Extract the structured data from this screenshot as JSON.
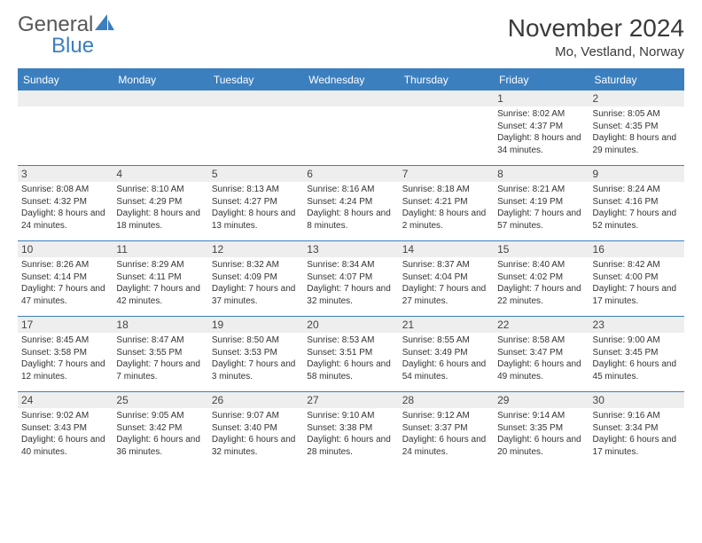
{
  "brand": {
    "part1": "General",
    "part2": "Blue"
  },
  "title": "November 2024",
  "subtitle": "Mo, Vestland, Norway",
  "colors": {
    "accent": "#3b7fbf",
    "header_text": "#ffffff",
    "daynum_bg": "#eeeeee",
    "text": "#333333",
    "background": "#ffffff"
  },
  "day_headers": [
    "Sunday",
    "Monday",
    "Tuesday",
    "Wednesday",
    "Thursday",
    "Friday",
    "Saturday"
  ],
  "weeks": [
    [
      {
        "n": "",
        "sunrise": "",
        "sunset": "",
        "daylight": ""
      },
      {
        "n": "",
        "sunrise": "",
        "sunset": "",
        "daylight": ""
      },
      {
        "n": "",
        "sunrise": "",
        "sunset": "",
        "daylight": ""
      },
      {
        "n": "",
        "sunrise": "",
        "sunset": "",
        "daylight": ""
      },
      {
        "n": "",
        "sunrise": "",
        "sunset": "",
        "daylight": ""
      },
      {
        "n": "1",
        "sunrise": "Sunrise: 8:02 AM",
        "sunset": "Sunset: 4:37 PM",
        "daylight": "Daylight: 8 hours and 34 minutes."
      },
      {
        "n": "2",
        "sunrise": "Sunrise: 8:05 AM",
        "sunset": "Sunset: 4:35 PM",
        "daylight": "Daylight: 8 hours and 29 minutes."
      }
    ],
    [
      {
        "n": "3",
        "sunrise": "Sunrise: 8:08 AM",
        "sunset": "Sunset: 4:32 PM",
        "daylight": "Daylight: 8 hours and 24 minutes."
      },
      {
        "n": "4",
        "sunrise": "Sunrise: 8:10 AM",
        "sunset": "Sunset: 4:29 PM",
        "daylight": "Daylight: 8 hours and 18 minutes."
      },
      {
        "n": "5",
        "sunrise": "Sunrise: 8:13 AM",
        "sunset": "Sunset: 4:27 PM",
        "daylight": "Daylight: 8 hours and 13 minutes."
      },
      {
        "n": "6",
        "sunrise": "Sunrise: 8:16 AM",
        "sunset": "Sunset: 4:24 PM",
        "daylight": "Daylight: 8 hours and 8 minutes."
      },
      {
        "n": "7",
        "sunrise": "Sunrise: 8:18 AM",
        "sunset": "Sunset: 4:21 PM",
        "daylight": "Daylight: 8 hours and 2 minutes."
      },
      {
        "n": "8",
        "sunrise": "Sunrise: 8:21 AM",
        "sunset": "Sunset: 4:19 PM",
        "daylight": "Daylight: 7 hours and 57 minutes."
      },
      {
        "n": "9",
        "sunrise": "Sunrise: 8:24 AM",
        "sunset": "Sunset: 4:16 PM",
        "daylight": "Daylight: 7 hours and 52 minutes."
      }
    ],
    [
      {
        "n": "10",
        "sunrise": "Sunrise: 8:26 AM",
        "sunset": "Sunset: 4:14 PM",
        "daylight": "Daylight: 7 hours and 47 minutes."
      },
      {
        "n": "11",
        "sunrise": "Sunrise: 8:29 AM",
        "sunset": "Sunset: 4:11 PM",
        "daylight": "Daylight: 7 hours and 42 minutes."
      },
      {
        "n": "12",
        "sunrise": "Sunrise: 8:32 AM",
        "sunset": "Sunset: 4:09 PM",
        "daylight": "Daylight: 7 hours and 37 minutes."
      },
      {
        "n": "13",
        "sunrise": "Sunrise: 8:34 AM",
        "sunset": "Sunset: 4:07 PM",
        "daylight": "Daylight: 7 hours and 32 minutes."
      },
      {
        "n": "14",
        "sunrise": "Sunrise: 8:37 AM",
        "sunset": "Sunset: 4:04 PM",
        "daylight": "Daylight: 7 hours and 27 minutes."
      },
      {
        "n": "15",
        "sunrise": "Sunrise: 8:40 AM",
        "sunset": "Sunset: 4:02 PM",
        "daylight": "Daylight: 7 hours and 22 minutes."
      },
      {
        "n": "16",
        "sunrise": "Sunrise: 8:42 AM",
        "sunset": "Sunset: 4:00 PM",
        "daylight": "Daylight: 7 hours and 17 minutes."
      }
    ],
    [
      {
        "n": "17",
        "sunrise": "Sunrise: 8:45 AM",
        "sunset": "Sunset: 3:58 PM",
        "daylight": "Daylight: 7 hours and 12 minutes."
      },
      {
        "n": "18",
        "sunrise": "Sunrise: 8:47 AM",
        "sunset": "Sunset: 3:55 PM",
        "daylight": "Daylight: 7 hours and 7 minutes."
      },
      {
        "n": "19",
        "sunrise": "Sunrise: 8:50 AM",
        "sunset": "Sunset: 3:53 PM",
        "daylight": "Daylight: 7 hours and 3 minutes."
      },
      {
        "n": "20",
        "sunrise": "Sunrise: 8:53 AM",
        "sunset": "Sunset: 3:51 PM",
        "daylight": "Daylight: 6 hours and 58 minutes."
      },
      {
        "n": "21",
        "sunrise": "Sunrise: 8:55 AM",
        "sunset": "Sunset: 3:49 PM",
        "daylight": "Daylight: 6 hours and 54 minutes."
      },
      {
        "n": "22",
        "sunrise": "Sunrise: 8:58 AM",
        "sunset": "Sunset: 3:47 PM",
        "daylight": "Daylight: 6 hours and 49 minutes."
      },
      {
        "n": "23",
        "sunrise": "Sunrise: 9:00 AM",
        "sunset": "Sunset: 3:45 PM",
        "daylight": "Daylight: 6 hours and 45 minutes."
      }
    ],
    [
      {
        "n": "24",
        "sunrise": "Sunrise: 9:02 AM",
        "sunset": "Sunset: 3:43 PM",
        "daylight": "Daylight: 6 hours and 40 minutes."
      },
      {
        "n": "25",
        "sunrise": "Sunrise: 9:05 AM",
        "sunset": "Sunset: 3:42 PM",
        "daylight": "Daylight: 6 hours and 36 minutes."
      },
      {
        "n": "26",
        "sunrise": "Sunrise: 9:07 AM",
        "sunset": "Sunset: 3:40 PM",
        "daylight": "Daylight: 6 hours and 32 minutes."
      },
      {
        "n": "27",
        "sunrise": "Sunrise: 9:10 AM",
        "sunset": "Sunset: 3:38 PM",
        "daylight": "Daylight: 6 hours and 28 minutes."
      },
      {
        "n": "28",
        "sunrise": "Sunrise: 9:12 AM",
        "sunset": "Sunset: 3:37 PM",
        "daylight": "Daylight: 6 hours and 24 minutes."
      },
      {
        "n": "29",
        "sunrise": "Sunrise: 9:14 AM",
        "sunset": "Sunset: 3:35 PM",
        "daylight": "Daylight: 6 hours and 20 minutes."
      },
      {
        "n": "30",
        "sunrise": "Sunrise: 9:16 AM",
        "sunset": "Sunset: 3:34 PM",
        "daylight": "Daylight: 6 hours and 17 minutes."
      }
    ]
  ]
}
